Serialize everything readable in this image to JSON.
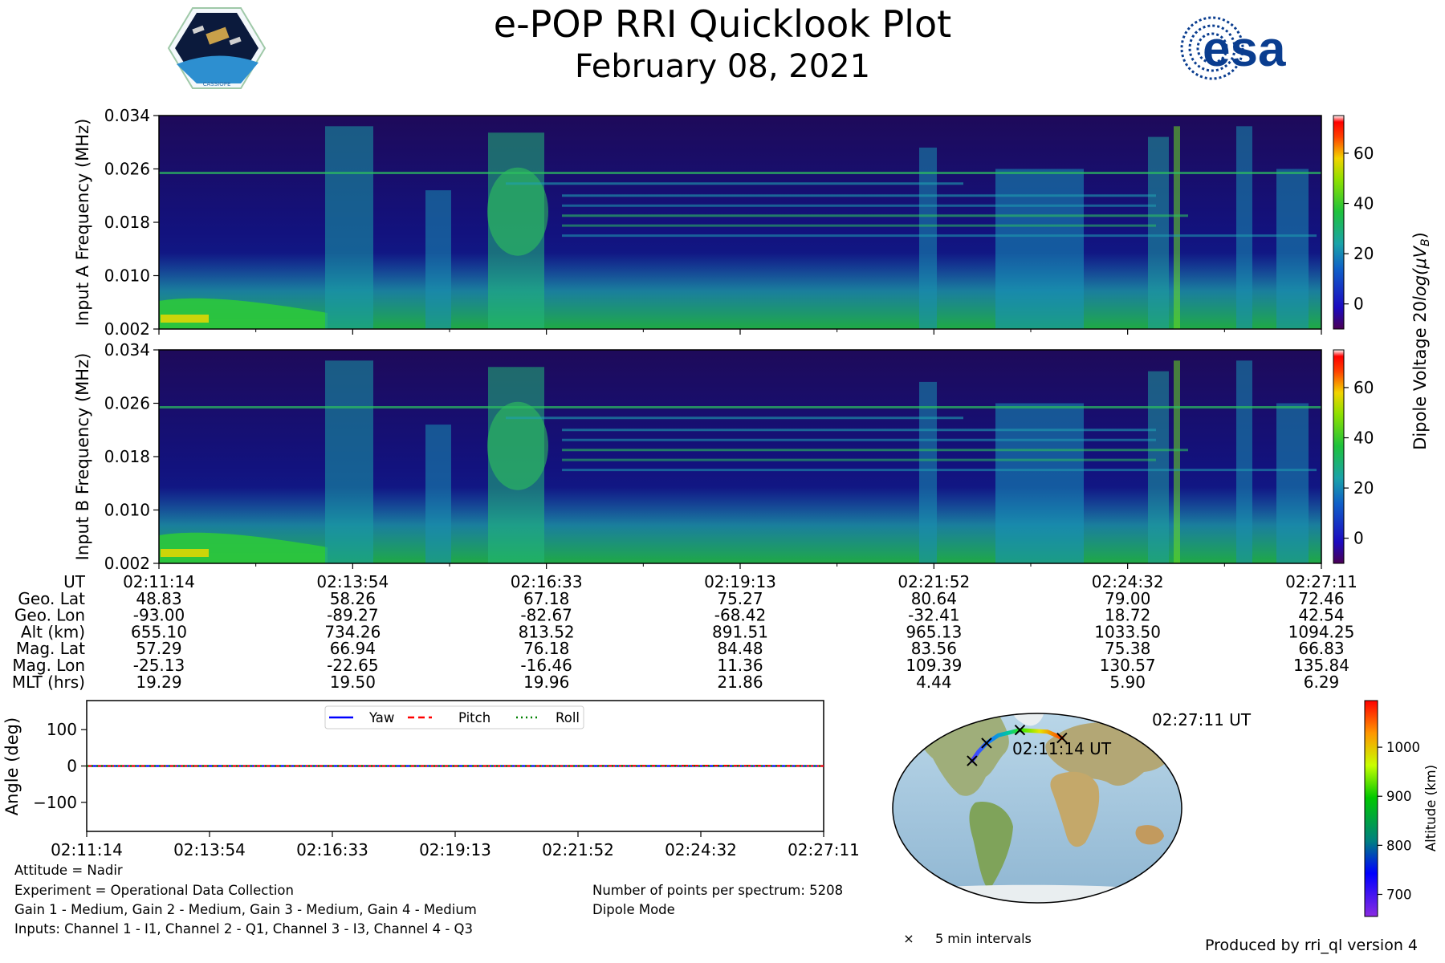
{
  "title": "e-POP RRI Quicklook Plot",
  "date": "February 08, 2021",
  "esa_logo_text": "esa",
  "cassiope_label": "CASSIOPE",
  "chart_data": [
    {
      "type": "heatmap",
      "name": "Input A spectrogram",
      "ylabel": "Input A Frequency (MHz)",
      "ylim": [
        0.002,
        0.034
      ],
      "yticks": [
        "0.002",
        "0.010",
        "0.018",
        "0.026",
        "0.034"
      ],
      "x_ticks_ut": [
        "02:11:14",
        "02:13:54",
        "02:16:33",
        "02:19:13",
        "02:21:52",
        "02:24:32",
        "02:27:11"
      ],
      "colorbar": {
        "label": "Dipole Voltage 20log(μV_B)",
        "label_main": "Dipole Voltage 20",
        "label_log": "log(μV",
        "label_sub": "B",
        "label_end": ")",
        "range": [
          -10,
          75
        ],
        "ticks": [
          "0",
          "20",
          "40",
          "60"
        ]
      }
    },
    {
      "type": "heatmap",
      "name": "Input B spectrogram",
      "ylabel": "Input B Frequency (MHz)",
      "ylim": [
        0.002,
        0.034
      ],
      "yticks": [
        "0.002",
        "0.010",
        "0.018",
        "0.026",
        "0.034"
      ],
      "colorbar": {
        "range": [
          -10,
          75
        ],
        "ticks": [
          "0",
          "20",
          "40",
          "60"
        ]
      }
    },
    {
      "type": "line",
      "name": "Attitude angles",
      "ylabel": "Angle (deg)",
      "ylim": [
        -180,
        180
      ],
      "yticks": [
        "100",
        "0",
        "−100"
      ],
      "ytick_values": [
        100,
        0,
        -100
      ],
      "x": [
        "02:11:14",
        "02:13:54",
        "02:16:33",
        "02:19:13",
        "02:21:52",
        "02:24:32",
        "02:27:11"
      ],
      "series": [
        {
          "name": "Yaw",
          "values": [
            0,
            0,
            0,
            0,
            0,
            0,
            0
          ],
          "color": "#0000ff",
          "style": "solid"
        },
        {
          "name": "Pitch",
          "values": [
            0,
            0,
            0,
            0,
            0,
            1,
            0
          ],
          "color": "#ff0000",
          "style": "dashed"
        },
        {
          "name": "Roll",
          "values": [
            0,
            0,
            0,
            0,
            0,
            0,
            0
          ],
          "color": "#008000",
          "style": "dotted"
        }
      ]
    }
  ],
  "ephemeris": {
    "labels": [
      "UT",
      "Geo. Lat",
      "Geo. Lon",
      "Alt (km)",
      "Mag. Lat",
      "Mag. Lon",
      "MLT (hrs)"
    ],
    "columns": [
      [
        "02:11:14",
        "48.83",
        "-93.00",
        "655.10",
        "57.29",
        "-25.13",
        "19.29"
      ],
      [
        "02:13:54",
        "58.26",
        "-89.27",
        "734.26",
        "66.94",
        "-22.65",
        "19.50"
      ],
      [
        "02:16:33",
        "67.18",
        "-82.67",
        "813.52",
        "76.18",
        "-16.46",
        "19.96"
      ],
      [
        "02:19:13",
        "75.27",
        "-68.42",
        "891.51",
        "84.48",
        "11.36",
        "21.86"
      ],
      [
        "02:21:52",
        "80.64",
        "-32.41",
        "965.13",
        "83.56",
        "109.39",
        "4.44"
      ],
      [
        "02:24:32",
        "79.00",
        "18.72",
        "1033.50",
        "75.38",
        "130.57",
        "5.90"
      ],
      [
        "02:27:11",
        "72.46",
        "42.54",
        "1094.25",
        "66.83",
        "135.84",
        "6.29"
      ]
    ]
  },
  "map": {
    "start_label": "02:11:14 UT",
    "end_label": "02:27:11 UT",
    "track": [
      {
        "lon": -93.0,
        "lat": 48.83
      },
      {
        "lon": -89.27,
        "lat": 58.26
      },
      {
        "lon": -82.67,
        "lat": 67.18
      },
      {
        "lon": -68.42,
        "lat": 75.27
      },
      {
        "lon": -32.41,
        "lat": 80.64
      },
      {
        "lon": 18.72,
        "lat": 79.0
      },
      {
        "lon": 42.54,
        "lat": 72.46
      }
    ],
    "track_alt_km": [
      655.1,
      734.26,
      813.52,
      891.51,
      965.13,
      1033.5,
      1094.25
    ],
    "marker_indices": [
      0,
      2,
      4,
      6
    ],
    "colorbar": {
      "label": "Altitude (km)",
      "range": [
        655,
        1095
      ],
      "ticks": [
        "700",
        "800",
        "900",
        "1000"
      ],
      "tick_values": [
        700,
        800,
        900,
        1000
      ]
    },
    "legend_marker": "×",
    "legend_text": "5 min intervals"
  },
  "footer": {
    "attitude": "Attitude = Nadir",
    "experiment": "Experiment = Operational Data Collection",
    "gains": "Gain 1 - Medium, Gain 2 - Medium, Gain 3 - Medium, Gain 4 - Medium",
    "inputs": "Inputs: Channel 1 - I1, Channel 2 - Q1, Channel 3 - I3, Channel 4 - Q3",
    "points": "Number of points per spectrum: 5208",
    "mode": "Dipole Mode",
    "produced_by": "Produced by rri_ql version 4"
  }
}
